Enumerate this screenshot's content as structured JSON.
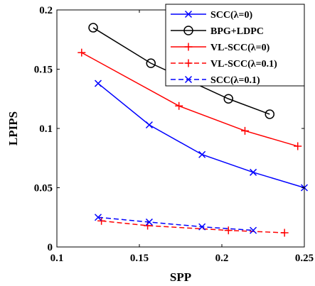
{
  "chart_data": {
    "type": "line",
    "xlabel": "SPP",
    "ylabel": "LPIPS",
    "xlim": [
      0.1,
      0.25
    ],
    "ylim": [
      0,
      0.2
    ],
    "xticks": [
      0.1,
      0.15,
      0.2,
      0.25
    ],
    "yticks": [
      0,
      0.05,
      0.1,
      0.15,
      0.2
    ],
    "xtick_labels": [
      "0.1",
      "0.15",
      "0.2",
      "0.25"
    ],
    "ytick_labels": [
      "0",
      "0.05",
      "0.1",
      "0.15",
      "0.2"
    ],
    "grid": false,
    "legend_position": "top-right",
    "series": [
      {
        "name": "SCC(λ=0)",
        "color": "#0000ff",
        "line_style": "solid",
        "marker": "x",
        "x": [
          0.125,
          0.156,
          0.188,
          0.219,
          0.25
        ],
        "y": [
          0.138,
          0.103,
          0.078,
          0.063,
          0.05
        ]
      },
      {
        "name": "BPG+LDPC",
        "color": "#000000",
        "line_style": "solid",
        "marker": "o",
        "x": [
          0.122,
          0.157,
          0.204,
          0.229
        ],
        "y": [
          0.185,
          0.155,
          0.125,
          0.112
        ]
      },
      {
        "name": "VL-SCC(λ=0)",
        "color": "#ff0000",
        "line_style": "solid",
        "marker": "+",
        "x": [
          0.115,
          0.174,
          0.214,
          0.246
        ],
        "y": [
          0.164,
          0.119,
          0.098,
          0.085
        ]
      },
      {
        "name": "VL-SCC(λ=0.1)",
        "color": "#ff0000",
        "line_style": "dashed",
        "marker": "+",
        "x": [
          0.127,
          0.155,
          0.204,
          0.238
        ],
        "y": [
          0.022,
          0.018,
          0.014,
          0.012
        ]
      },
      {
        "name": "SCC(λ=0.1)",
        "color": "#0000ff",
        "line_style": "dashed",
        "marker": "x",
        "x": [
          0.125,
          0.156,
          0.188,
          0.219
        ],
        "y": [
          0.025,
          0.021,
          0.017,
          0.014
        ]
      }
    ]
  }
}
